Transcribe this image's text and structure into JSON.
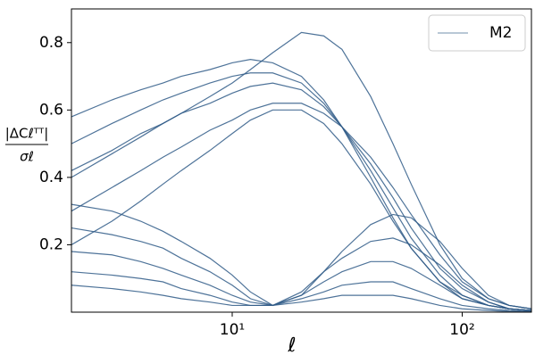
{
  "chart_data": {
    "type": "line",
    "x_label": "ℓ",
    "y_label_numerator": "|ΔCℓᵀᵀ|",
    "y_label_denominator": "σℓ",
    "x": [
      2,
      3,
      4,
      5,
      6,
      8,
      10,
      12,
      15,
      20,
      25,
      30,
      40,
      50,
      60,
      80,
      100,
      130,
      160,
      200
    ],
    "xlim": [
      2,
      200
    ],
    "xticks": [
      {
        "value": 10,
        "label": "10¹"
      },
      {
        "value": 100,
        "label": "10²"
      }
    ],
    "xscale": "log",
    "ylim": [
      0,
      0.9
    ],
    "yticks": [
      0.2,
      0.4,
      0.6,
      0.8
    ],
    "legend": "upper right",
    "series": [
      {
        "name": "M2",
        "color": "#2f5a87",
        "values": [
          [
            0.4,
            0.47,
            0.52,
            0.56,
            0.59,
            0.64,
            0.68,
            0.72,
            0.77,
            0.83,
            0.82,
            0.78,
            0.64,
            0.5,
            0.38,
            0.2,
            0.1,
            0.04,
            0.02,
            0.01
          ],
          [
            0.58,
            0.63,
            0.66,
            0.68,
            0.7,
            0.72,
            0.74,
            0.75,
            0.74,
            0.7,
            0.63,
            0.55,
            0.4,
            0.28,
            0.19,
            0.09,
            0.04,
            0.02,
            0.01,
            0.005
          ],
          [
            0.5,
            0.56,
            0.6,
            0.63,
            0.65,
            0.68,
            0.7,
            0.71,
            0.71,
            0.68,
            0.62,
            0.55,
            0.42,
            0.31,
            0.22,
            0.11,
            0.05,
            0.02,
            0.01,
            0.005
          ],
          [
            0.42,
            0.48,
            0.53,
            0.56,
            0.59,
            0.62,
            0.65,
            0.67,
            0.68,
            0.66,
            0.61,
            0.55,
            0.44,
            0.34,
            0.25,
            0.13,
            0.07,
            0.03,
            0.01,
            0.005
          ],
          [
            0.3,
            0.37,
            0.42,
            0.46,
            0.49,
            0.54,
            0.57,
            0.6,
            0.62,
            0.62,
            0.59,
            0.55,
            0.46,
            0.37,
            0.29,
            0.17,
            0.09,
            0.04,
            0.02,
            0.01
          ],
          [
            0.2,
            0.27,
            0.33,
            0.38,
            0.42,
            0.48,
            0.53,
            0.57,
            0.6,
            0.6,
            0.56,
            0.5,
            0.38,
            0.27,
            0.19,
            0.09,
            0.05,
            0.02,
            0.01,
            0.005
          ],
          [
            0.32,
            0.3,
            0.27,
            0.24,
            0.21,
            0.16,
            0.11,
            0.06,
            0.02,
            0.05,
            0.12,
            0.18,
            0.26,
            0.29,
            0.28,
            0.21,
            0.13,
            0.05,
            0.02,
            0.01
          ],
          [
            0.25,
            0.23,
            0.21,
            0.19,
            0.16,
            0.12,
            0.08,
            0.04,
            0.02,
            0.06,
            0.12,
            0.16,
            0.21,
            0.22,
            0.2,
            0.14,
            0.08,
            0.03,
            0.01,
            0.005
          ],
          [
            0.18,
            0.17,
            0.15,
            0.13,
            0.11,
            0.08,
            0.05,
            0.03,
            0.02,
            0.05,
            0.09,
            0.12,
            0.15,
            0.15,
            0.13,
            0.08,
            0.04,
            0.02,
            0.01,
            0.005
          ],
          [
            0.12,
            0.11,
            0.1,
            0.09,
            0.07,
            0.05,
            0.03,
            0.02,
            0.02,
            0.04,
            0.06,
            0.08,
            0.09,
            0.09,
            0.07,
            0.04,
            0.02,
            0.01,
            0.005,
            0.002
          ],
          [
            0.08,
            0.07,
            0.06,
            0.05,
            0.04,
            0.03,
            0.02,
            0.02,
            0.02,
            0.03,
            0.04,
            0.05,
            0.05,
            0.05,
            0.04,
            0.02,
            0.01,
            0.005,
            0.002,
            0.001
          ]
        ]
      }
    ]
  }
}
